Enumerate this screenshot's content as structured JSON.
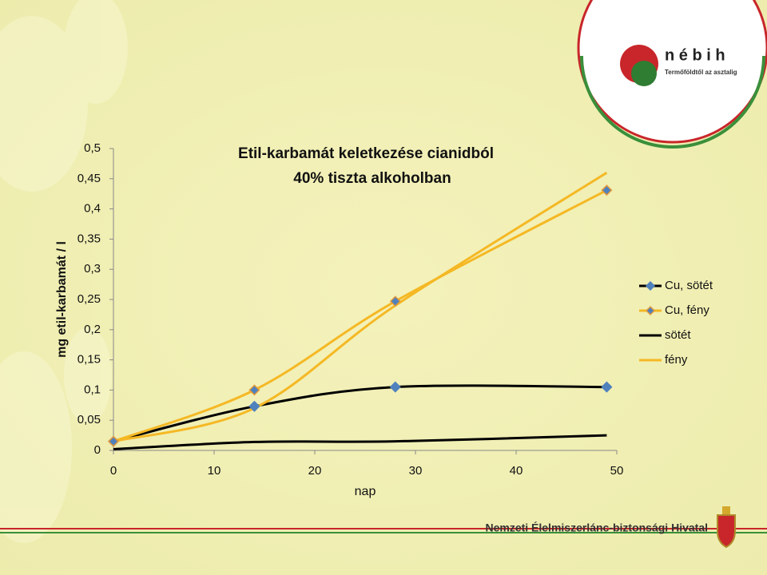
{
  "chart_data": {
    "type": "line",
    "smooth": true,
    "title_lines": [
      "Etil-karbamát keletkezése cianidból",
      "40% tiszta alkoholban"
    ],
    "y_label": "mg etil-karbamát / l",
    "x_label": "nap",
    "x": [
      0,
      14,
      28,
      49
    ],
    "series": [
      {
        "name": "Cu, sötét",
        "color": "#000000",
        "marker": "diamond",
        "marker_color": "#4f81bd",
        "marker_edge": "#4f81bd",
        "values": [
          0.015,
          0.073,
          0.105,
          0.105
        ]
      },
      {
        "name": "Cu, fény",
        "color": "#f5b824",
        "marker": "diamond",
        "marker_color": "#4f81bd",
        "marker_edge": "#e39a3b",
        "values": [
          0.015,
          0.1,
          0.247,
          0.431
        ]
      },
      {
        "name": "sötét",
        "color": "#000000",
        "values": [
          0.002,
          0.014,
          0.015,
          0.025
        ]
      },
      {
        "name": "fény",
        "color": "#f5b824",
        "values": [
          0.015,
          0.07,
          0.24,
          0.46
        ]
      }
    ],
    "xlim": [
      0,
      50
    ],
    "xticks": [
      0,
      10,
      20,
      30,
      40,
      50
    ],
    "ylim": [
      0,
      0.5
    ],
    "yticks": [
      0,
      {
        "value": 0.05,
        "label": "0,05"
      },
      {
        "value": 0.1,
        "label": "0,1"
      },
      {
        "value": 0.15,
        "label": "0,15"
      },
      {
        "value": 0.2,
        "label": "0,2"
      },
      {
        "value": 0.25,
        "label": "0,25"
      },
      {
        "value": 0.3,
        "label": "0,3"
      },
      {
        "value": 0.35,
        "label": "0,35"
      },
      {
        "value": 0.4,
        "label": "0,4"
      },
      {
        "value": 0.45,
        "label": "0,45"
      },
      {
        "value": 0.5,
        "label": "0,5"
      }
    ],
    "legend": "right"
  },
  "slide": {
    "logo": "n é b i h",
    "tagline": "Termőföldtől az asztalig",
    "footer": "Nemzeti Élelmiszerlánc-biztonsági Hivatal"
  }
}
